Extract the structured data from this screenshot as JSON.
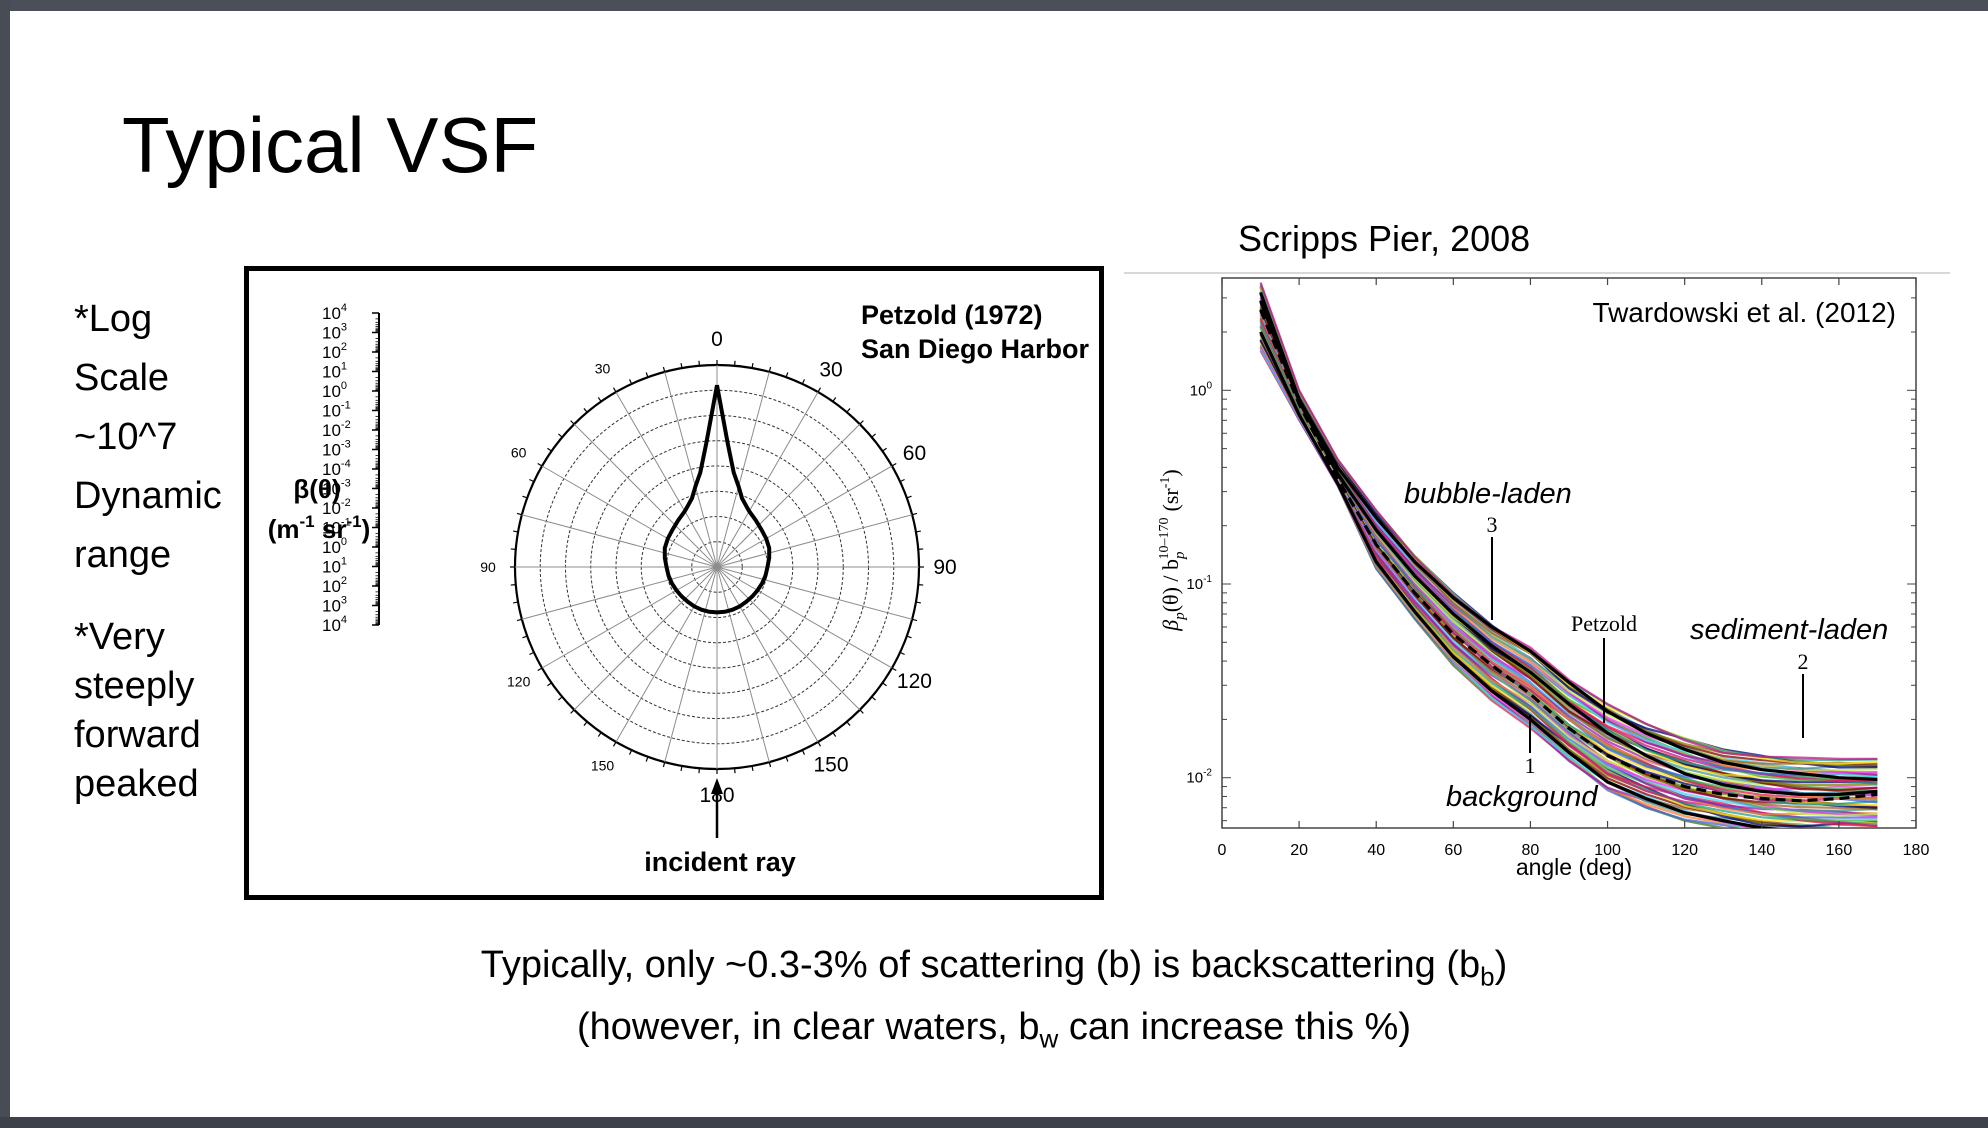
{
  "slide": {
    "title": "Typical VSF",
    "notes_1": [
      "*Log",
      "Scale",
      "~10^7",
      "Dynamic",
      "range"
    ],
    "notes_2": [
      "*Very",
      "steeply",
      "forward",
      "peaked"
    ],
    "caption_line1_pre": "Typically, only ~0.3-3% of scattering (b) is backscattering (b",
    "caption_line1_sub": "b",
    "caption_line1_post": ")",
    "caption_line2_pre": "(however, in clear waters, b",
    "caption_line2_sub": "w",
    "caption_line2_post": " can increase this %)"
  },
  "chart_data": [
    {
      "type": "polar",
      "title": "Petzold (1972)",
      "subtitle": "San Diego Harbor",
      "radial_label": "β(θ)",
      "radial_unit_pre": "(m",
      "radial_unit_exp": "-1",
      "radial_unit_mid": " sr",
      "radial_unit_exp2": "-1",
      "radial_unit_post": ")",
      "radial_scale": "log",
      "radial_ticks_exponents": [
        4,
        3,
        2,
        1,
        0,
        -1,
        -2,
        -3,
        -4,
        -3,
        -2,
        -1,
        0,
        1,
        2,
        3,
        4
      ],
      "radial_tick_base": "10",
      "angle_labels_large": [
        "0",
        "30",
        "60",
        "90",
        "120",
        "150",
        "180"
      ],
      "angle_labels_small": [
        "30",
        "60",
        "90",
        "120",
        "150"
      ],
      "annotation": "incident ray",
      "series": [
        {
          "angle_deg": [
            0,
            5,
            10,
            15,
            20,
            25,
            30,
            40,
            50,
            60,
            70,
            80,
            90,
            100,
            110,
            120,
            130,
            140,
            150,
            160,
            170,
            180
          ],
          "radius_rings": [
            7.2,
            4.9,
            3.8,
            3.3,
            2.9,
            2.7,
            2.55,
            2.4,
            2.3,
            2.25,
            2.2,
            2.1,
            2.0,
            1.95,
            1.9,
            1.85,
            1.82,
            1.8,
            1.8,
            1.8,
            1.8,
            1.8
          ]
        }
      ],
      "ring_count": 8
    },
    {
      "type": "line",
      "title": "Scripps Pier, 2008",
      "annotation_source": "Twardowski et al. (2012)",
      "xlabel": "angle (deg)",
      "ylabel": "β_p(θ) / b_p^10–170 (sr⁻¹)",
      "ylabel_parts": {
        "beta": "β",
        "p1": "p",
        "theta": "(θ) / b",
        "p2": "p",
        "sup": "10–170",
        "unit": "(sr",
        "unit_exp": "-1",
        "unit_close": ")"
      },
      "xlim": [
        0,
        180
      ],
      "xticks": [
        0,
        20,
        40,
        60,
        80,
        100,
        120,
        140,
        160,
        180
      ],
      "yscale": "log",
      "ylim": [
        0.0055,
        3.8
      ],
      "yticks": [
        {
          "value": 1,
          "base": "10",
          "exp": "0"
        },
        {
          "value": 0.1,
          "base": "10",
          "exp": "-1"
        },
        {
          "value": 0.01,
          "base": "10",
          "exp": "-2"
        }
      ],
      "envelope": {
        "x": [
          10,
          20,
          30,
          40,
          50,
          60,
          70,
          80,
          90,
          100,
          110,
          120,
          130,
          140,
          150,
          160,
          170
        ],
        "upper": [
          3.6,
          1.0,
          0.44,
          0.24,
          0.14,
          0.09,
          0.062,
          0.047,
          0.032,
          0.024,
          0.019,
          0.016,
          0.014,
          0.0132,
          0.0127,
          0.0125,
          0.0125
        ],
        "lower": [
          1.6,
          0.7,
          0.32,
          0.12,
          0.066,
          0.038,
          0.025,
          0.018,
          0.012,
          0.0085,
          0.007,
          0.006,
          0.0055,
          0.005,
          0.0048,
          0.0047,
          0.0046
        ]
      },
      "series": [
        {
          "name": "bubble-laden",
          "marker": "3",
          "style": "solid",
          "x": [
            10,
            20,
            30,
            40,
            50,
            60,
            70,
            80,
            90,
            100,
            110,
            120,
            130,
            140,
            150,
            160,
            170
          ],
          "y": [
            3.2,
            0.9,
            0.4,
            0.22,
            0.13,
            0.085,
            0.06,
            0.045,
            0.031,
            0.022,
            0.017,
            0.014,
            0.012,
            0.011,
            0.0105,
            0.01,
            0.0098
          ]
        },
        {
          "name": "Petzold",
          "marker": "",
          "style": "dashed",
          "x": [
            10,
            20,
            30,
            40,
            50,
            60,
            70,
            80,
            90,
            100,
            110,
            120,
            130,
            140,
            150,
            160,
            170
          ],
          "y": [
            2.6,
            0.85,
            0.35,
            0.16,
            0.09,
            0.055,
            0.038,
            0.027,
            0.018,
            0.013,
            0.0105,
            0.009,
            0.0082,
            0.0078,
            0.0076,
            0.0078,
            0.0082
          ]
        },
        {
          "name": "sediment-laden",
          "marker": "2",
          "style": "solid",
          "x": [
            10,
            20,
            30,
            40,
            50,
            60,
            70,
            80,
            90,
            100,
            110,
            120,
            130,
            140,
            150,
            160,
            170
          ],
          "y": [
            2.9,
            0.88,
            0.37,
            0.19,
            0.11,
            0.07,
            0.048,
            0.035,
            0.024,
            0.017,
            0.013,
            0.0105,
            0.0092,
            0.0085,
            0.0082,
            0.0082,
            0.0085
          ]
        },
        {
          "name": "background",
          "marker": "1",
          "style": "solid",
          "x": [
            10,
            20,
            30,
            40,
            50,
            60,
            70,
            80,
            90,
            100,
            110,
            120,
            130,
            140,
            150,
            160,
            170
          ],
          "y": [
            2.0,
            0.75,
            0.33,
            0.13,
            0.072,
            0.042,
            0.028,
            0.02,
            0.0135,
            0.0095,
            0.0078,
            0.0066,
            0.006,
            0.0055,
            0.0053,
            0.0052,
            0.0052
          ]
        }
      ],
      "curve_labels": {
        "bubble": "bubble-laden",
        "bubble_num": "3",
        "petzold": "Petzold",
        "sediment": "sediment-laden",
        "sediment_num": "2",
        "background": "background",
        "background_num": "1"
      },
      "palette": [
        "#e6194b",
        "#3cb44b",
        "#4363d8",
        "#f58231",
        "#911eb4",
        "#42d4f4",
        "#f032e6",
        "#bfef45",
        "#469990",
        "#9a6324",
        "#800000",
        "#808000",
        "#000075",
        "#ffe119",
        "#1f9f8f",
        "#c71585"
      ]
    }
  ]
}
